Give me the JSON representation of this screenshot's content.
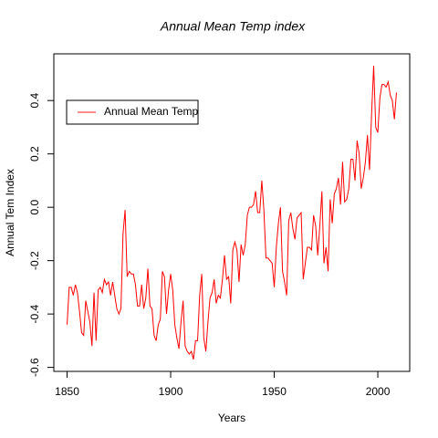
{
  "chart_data": {
    "type": "line",
    "title": "Annual Mean Temp index",
    "xlabel": "Years",
    "ylabel": "Annual Tem Index",
    "x": [
      1850,
      1851,
      1852,
      1853,
      1854,
      1855,
      1856,
      1857,
      1858,
      1859,
      1860,
      1861,
      1862,
      1863,
      1864,
      1865,
      1866,
      1867,
      1868,
      1869,
      1870,
      1871,
      1872,
      1873,
      1874,
      1875,
      1876,
      1877,
      1878,
      1879,
      1880,
      1881,
      1882,
      1883,
      1884,
      1885,
      1886,
      1887,
      1888,
      1889,
      1890,
      1891,
      1892,
      1893,
      1894,
      1895,
      1896,
      1897,
      1898,
      1899,
      1900,
      1901,
      1902,
      1903,
      1904,
      1905,
      1906,
      1907,
      1908,
      1909,
      1910,
      1911,
      1912,
      1913,
      1914,
      1915,
      1916,
      1917,
      1918,
      1919,
      1920,
      1921,
      1922,
      1923,
      1924,
      1925,
      1926,
      1927,
      1928,
      1929,
      1930,
      1931,
      1932,
      1933,
      1934,
      1935,
      1936,
      1937,
      1938,
      1939,
      1940,
      1941,
      1942,
      1943,
      1944,
      1945,
      1946,
      1947,
      1948,
      1949,
      1950,
      1951,
      1952,
      1953,
      1954,
      1955,
      1956,
      1957,
      1958,
      1959,
      1960,
      1961,
      1962,
      1963,
      1964,
      1965,
      1966,
      1967,
      1968,
      1969,
      1970,
      1971,
      1972,
      1973,
      1974,
      1975,
      1976,
      1977,
      1978,
      1979,
      1980,
      1981,
      1982,
      1983,
      1984,
      1985,
      1986,
      1987,
      1988,
      1989,
      1990,
      1991,
      1992,
      1993,
      1994,
      1995,
      1996,
      1997,
      1998,
      1999,
      2000,
      2001,
      2002,
      2003,
      2004,
      2005,
      2006,
      2007,
      2008,
      2009
    ],
    "series": [
      {
        "name": "Annual Mean Temp",
        "color": "#ff0000",
        "values": [
          -0.44,
          -0.3,
          -0.3,
          -0.33,
          -0.29,
          -0.32,
          -0.39,
          -0.47,
          -0.48,
          -0.35,
          -0.39,
          -0.43,
          -0.52,
          -0.32,
          -0.5,
          -0.31,
          -0.3,
          -0.32,
          -0.27,
          -0.29,
          -0.28,
          -0.33,
          -0.28,
          -0.33,
          -0.38,
          -0.4,
          -0.38,
          -0.1,
          -0.01,
          -0.26,
          -0.24,
          -0.25,
          -0.25,
          -0.29,
          -0.37,
          -0.37,
          -0.29,
          -0.38,
          -0.34,
          -0.23,
          -0.37,
          -0.38,
          -0.48,
          -0.5,
          -0.44,
          -0.42,
          -0.24,
          -0.26,
          -0.4,
          -0.31,
          -0.25,
          -0.31,
          -0.44,
          -0.49,
          -0.53,
          -0.43,
          -0.35,
          -0.52,
          -0.54,
          -0.55,
          -0.54,
          -0.57,
          -0.5,
          -0.5,
          -0.33,
          -0.25,
          -0.49,
          -0.54,
          -0.43,
          -0.34,
          -0.32,
          -0.27,
          -0.36,
          -0.33,
          -0.34,
          -0.27,
          -0.18,
          -0.27,
          -0.26,
          -0.36,
          -0.16,
          -0.13,
          -0.16,
          -0.28,
          -0.14,
          -0.18,
          -0.14,
          -0.03,
          0.0,
          0.0,
          0.01,
          0.06,
          -0.02,
          -0.02,
          0.1,
          -0.01,
          -0.19,
          -0.19,
          -0.2,
          -0.21,
          -0.3,
          -0.15,
          -0.06,
          0.0,
          -0.24,
          -0.28,
          -0.33,
          -0.05,
          -0.02,
          -0.08,
          -0.12,
          -0.04,
          -0.03,
          -0.02,
          -0.27,
          -0.21,
          -0.15,
          -0.15,
          -0.16,
          -0.03,
          -0.07,
          -0.18,
          -0.07,
          0.06,
          -0.21,
          -0.15,
          -0.24,
          0.03,
          -0.06,
          0.05,
          0.07,
          0.11,
          0.01,
          0.17,
          0.02,
          0.03,
          0.07,
          0.18,
          0.18,
          0.1,
          0.25,
          0.2,
          0.07,
          0.11,
          0.17,
          0.27,
          0.14,
          0.35,
          0.53,
          0.3,
          0.28,
          0.41,
          0.46,
          0.46,
          0.45,
          0.47,
          0.42,
          0.4,
          0.33,
          0.43
        ]
      }
    ],
    "xlim": [
      1843.6,
      2015.4
    ],
    "xticks": [
      1850,
      1900,
      1950,
      2000
    ],
    "ylim": [
      -0.615,
      0.575
    ],
    "yticks": [
      -0.6,
      -0.4,
      -0.2,
      {
        "value": 0,
        "label": "0.0"
      },
      0.2,
      0.4
    ],
    "legend": "topleft"
  }
}
